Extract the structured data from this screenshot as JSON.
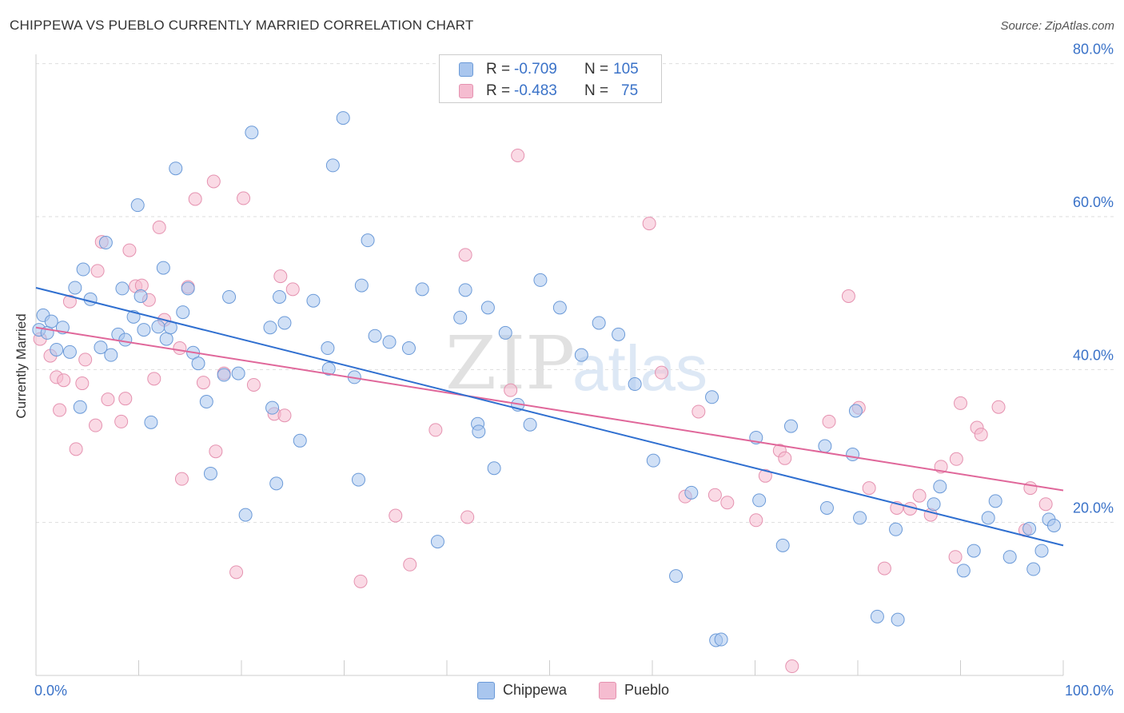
{
  "title": "CHIPPEWA VS PUEBLO CURRENTLY MARRIED CORRELATION CHART",
  "source": "Source: ZipAtlas.com",
  "watermark": {
    "part1": "ZIP",
    "part2": "atlas"
  },
  "colors": {
    "chippewa_fill": "#a9c6ee",
    "chippewa_stroke": "#6b9ad8",
    "chippewa_line": "#2f6fd0",
    "pueblo_fill": "#f5bcd0",
    "pueblo_stroke": "#e592b0",
    "pueblo_line": "#e0679a",
    "value_text": "#3a72c8",
    "grid": "#dddddd"
  },
  "legend": {
    "chippewa": {
      "r_label": "R =",
      "r_value": "-0.709",
      "n_label": "N =",
      "n_value": "105"
    },
    "pueblo": {
      "r_label": "R =",
      "r_value": "-0.483",
      "n_label": "N =",
      "n_value": "75"
    }
  },
  "chart_data": {
    "type": "scatter",
    "title": "CHIPPEWA VS PUEBLO CURRENTLY MARRIED CORRELATION CHART",
    "xlabel": "",
    "ylabel": "Currently Married",
    "xlim": [
      0,
      100
    ],
    "ylim": [
      0,
      80
    ],
    "x_tick_labels": [
      "0.0%",
      "100.0%"
    ],
    "y_ticks": [
      20,
      40,
      60,
      80
    ],
    "y_tick_labels": [
      "20.0%",
      "40.0%",
      "60.0%",
      "80.0%"
    ],
    "grid": true,
    "series": [
      {
        "name": "Chippewa",
        "r": -0.709,
        "n": 105,
        "trend": {
          "x": [
            0,
            100
          ],
          "y": [
            50.7,
            17.0
          ]
        },
        "points": [
          [
            0.3,
            45.2
          ],
          [
            0.7,
            47.1
          ],
          [
            1.1,
            44.8
          ],
          [
            1.5,
            46.3
          ],
          [
            2.0,
            42.6
          ],
          [
            2.6,
            45.5
          ],
          [
            3.3,
            42.3
          ],
          [
            3.8,
            50.7
          ],
          [
            4.3,
            35.1
          ],
          [
            4.6,
            53.1
          ],
          [
            5.3,
            49.2
          ],
          [
            6.3,
            42.9
          ],
          [
            6.8,
            56.6
          ],
          [
            7.3,
            41.9
          ],
          [
            8.0,
            44.6
          ],
          [
            8.4,
            50.6
          ],
          [
            8.7,
            43.9
          ],
          [
            9.5,
            46.9
          ],
          [
            9.9,
            61.5
          ],
          [
            10.2,
            49.6
          ],
          [
            10.5,
            45.2
          ],
          [
            11.2,
            33.1
          ],
          [
            11.9,
            45.6
          ],
          [
            12.4,
            53.3
          ],
          [
            12.7,
            44.0
          ],
          [
            13.1,
            45.5
          ],
          [
            13.6,
            66.3
          ],
          [
            14.3,
            47.5
          ],
          [
            14.8,
            50.6
          ],
          [
            15.3,
            42.2
          ],
          [
            15.8,
            40.8
          ],
          [
            16.6,
            35.8
          ],
          [
            17.0,
            26.4
          ],
          [
            18.3,
            39.3
          ],
          [
            18.8,
            49.5
          ],
          [
            19.7,
            39.5
          ],
          [
            20.4,
            21.0
          ],
          [
            21.0,
            71.0
          ],
          [
            22.8,
            45.5
          ],
          [
            23.0,
            35.0
          ],
          [
            23.4,
            25.1
          ],
          [
            23.7,
            49.5
          ],
          [
            24.2,
            46.1
          ],
          [
            25.7,
            30.7
          ],
          [
            27.0,
            49.0
          ],
          [
            28.4,
            42.8
          ],
          [
            28.5,
            40.1
          ],
          [
            28.9,
            66.7
          ],
          [
            29.9,
            72.9
          ],
          [
            31.0,
            39.0
          ],
          [
            31.4,
            25.6
          ],
          [
            31.7,
            51.0
          ],
          [
            32.3,
            56.9
          ],
          [
            33.0,
            44.4
          ],
          [
            34.4,
            43.6
          ],
          [
            36.3,
            42.8
          ],
          [
            37.6,
            50.5
          ],
          [
            39.1,
            17.5
          ],
          [
            41.3,
            46.8
          ],
          [
            41.8,
            50.4
          ],
          [
            43.0,
            32.9
          ],
          [
            43.1,
            31.9
          ],
          [
            44.0,
            48.1
          ],
          [
            44.6,
            27.1
          ],
          [
            45.7,
            44.8
          ],
          [
            46.9,
            35.4
          ],
          [
            48.1,
            32.8
          ],
          [
            49.1,
            51.7
          ],
          [
            51.0,
            48.1
          ],
          [
            53.1,
            41.9
          ],
          [
            54.8,
            46.1
          ],
          [
            56.7,
            44.6
          ],
          [
            58.3,
            38.1
          ],
          [
            60.1,
            28.1
          ],
          [
            62.3,
            13.0
          ],
          [
            63.8,
            23.9
          ],
          [
            65.8,
            36.4
          ],
          [
            66.2,
            4.6
          ],
          [
            66.7,
            4.7
          ],
          [
            70.1,
            31.1
          ],
          [
            70.4,
            22.9
          ],
          [
            72.7,
            17.0
          ],
          [
            73.5,
            32.6
          ],
          [
            76.8,
            30.0
          ],
          [
            77.0,
            21.9
          ],
          [
            79.5,
            28.9
          ],
          [
            79.8,
            34.6
          ],
          [
            80.2,
            20.6
          ],
          [
            81.9,
            7.7
          ],
          [
            83.7,
            19.1
          ],
          [
            83.9,
            7.3
          ],
          [
            87.4,
            22.4
          ],
          [
            88.0,
            24.7
          ],
          [
            90.3,
            13.7
          ],
          [
            91.3,
            16.3
          ],
          [
            92.7,
            20.6
          ],
          [
            93.4,
            22.8
          ],
          [
            94.8,
            15.5
          ],
          [
            96.7,
            19.2
          ],
          [
            97.1,
            13.9
          ],
          [
            97.9,
            16.3
          ],
          [
            98.6,
            20.4
          ],
          [
            99.1,
            19.6
          ]
        ]
      },
      {
        "name": "Pueblo",
        "r": -0.483,
        "n": 75,
        "trend": {
          "x": [
            0,
            100
          ],
          "y": [
            45.5,
            24.2
          ]
        },
        "points": [
          [
            0.4,
            44.0
          ],
          [
            1.4,
            41.8
          ],
          [
            2.0,
            39.0
          ],
          [
            2.3,
            34.7
          ],
          [
            2.7,
            38.6
          ],
          [
            3.3,
            48.9
          ],
          [
            3.9,
            29.6
          ],
          [
            4.5,
            38.2
          ],
          [
            4.8,
            41.3
          ],
          [
            5.8,
            32.7
          ],
          [
            6.0,
            52.9
          ],
          [
            6.4,
            56.7
          ],
          [
            7.0,
            36.1
          ],
          [
            8.3,
            33.2
          ],
          [
            8.7,
            36.2
          ],
          [
            9.1,
            55.6
          ],
          [
            9.7,
            50.9
          ],
          [
            10.3,
            51.0
          ],
          [
            11.0,
            49.1
          ],
          [
            11.5,
            38.8
          ],
          [
            12.0,
            58.6
          ],
          [
            12.5,
            46.5
          ],
          [
            14.0,
            42.8
          ],
          [
            14.2,
            25.7
          ],
          [
            14.8,
            50.8
          ],
          [
            15.5,
            62.3
          ],
          [
            16.3,
            38.3
          ],
          [
            17.3,
            64.6
          ],
          [
            17.5,
            29.3
          ],
          [
            19.5,
            13.5
          ],
          [
            20.2,
            62.4
          ],
          [
            21.2,
            38.0
          ],
          [
            23.2,
            34.2
          ],
          [
            23.8,
            52.2
          ],
          [
            25.0,
            50.5
          ],
          [
            31.6,
            12.3
          ],
          [
            35.0,
            20.9
          ],
          [
            36.4,
            14.5
          ],
          [
            38.9,
            32.1
          ],
          [
            41.8,
            55.0
          ],
          [
            42.0,
            20.7
          ],
          [
            46.2,
            37.3
          ],
          [
            46.9,
            68.0
          ],
          [
            59.7,
            59.1
          ],
          [
            60.9,
            39.6
          ],
          [
            63.2,
            23.4
          ],
          [
            64.5,
            34.5
          ],
          [
            66.1,
            23.6
          ],
          [
            67.3,
            22.6
          ],
          [
            70.1,
            20.3
          ],
          [
            71.0,
            26.1
          ],
          [
            72.4,
            29.4
          ],
          [
            72.9,
            28.4
          ],
          [
            73.6,
            1.2
          ],
          [
            77.2,
            33.2
          ],
          [
            79.1,
            49.6
          ],
          [
            81.1,
            24.5
          ],
          [
            82.6,
            14.0
          ],
          [
            83.8,
            21.9
          ],
          [
            85.1,
            21.8
          ],
          [
            86.0,
            23.5
          ],
          [
            87.1,
            21.0
          ],
          [
            88.1,
            27.3
          ],
          [
            89.5,
            15.5
          ],
          [
            89.6,
            28.3
          ],
          [
            90.0,
            35.6
          ],
          [
            91.6,
            32.4
          ],
          [
            92.0,
            31.5
          ],
          [
            93.7,
            35.1
          ],
          [
            96.8,
            24.5
          ],
          [
            98.3,
            22.4
          ],
          [
            96.3,
            19.0
          ],
          [
            24.2,
            34.0
          ],
          [
            80.1,
            35.0
          ],
          [
            18.3,
            39.5
          ]
        ]
      }
    ]
  },
  "bottom_legend": {
    "chippewa": "Chippewa",
    "pueblo": "Pueblo"
  }
}
